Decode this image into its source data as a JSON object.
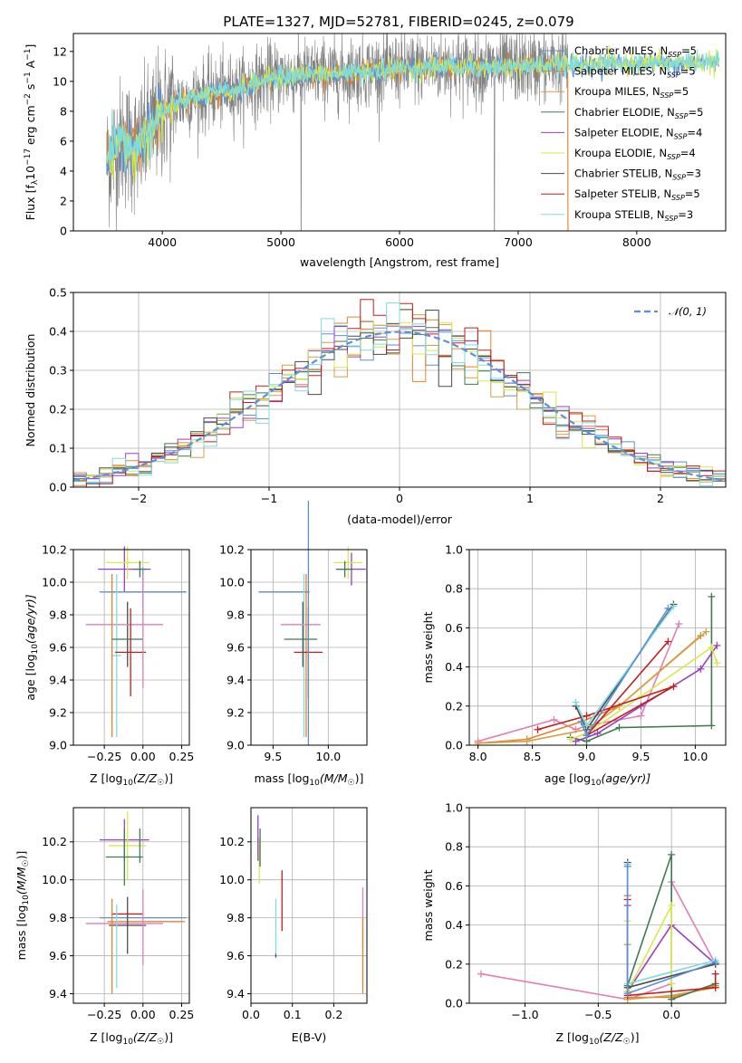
{
  "colors": {
    "chabrier_miles": "#5b8fd9",
    "salpeter_miles": "#e6832e",
    "kroupa_miles": "#d4a040",
    "chabrier_elodie": "#3f7a52",
    "salpeter_elodie": "#9a3ec4",
    "kroupa_elodie": "#d8e84a",
    "chabrier_stelib": "#4a4a4a",
    "salpeter_stelib": "#c41e1e",
    "kroupa_stelib": "#7fdcdc",
    "pink": "#e07fb8",
    "gaussian": "#5b8fd9"
  },
  "chart_data": [
    {
      "id": "spectrum",
      "type": "line",
      "title": "PLATE=1327, MJD=52781, FIBERID=0245, z=0.079",
      "xlabel": "wavelength [Angstrom, rest frame]",
      "ylabel_main": "Flux [f",
      "ylabel_rest": "10",
      "ylabel_exp": "−17",
      "ylabel_units": " erg cm",
      "ylabel_e2": "−2",
      "ylabel_s": " s",
      "ylabel_e1": "−1",
      "ylabel_a": " A",
      "ylabel_e3": "−1",
      "ylabel_end": "]",
      "xlim": [
        3250,
        8750
      ],
      "ylim": [
        0,
        13.2
      ],
      "xticks": [
        "4000",
        "5000",
        "6000",
        "7000",
        "8000"
      ],
      "xtick_values": [
        4000,
        5000,
        6000,
        7000,
        8000
      ],
      "yticks": [
        "0",
        "2",
        "4",
        "6",
        "8",
        "10",
        "12"
      ],
      "ytick_values": [
        0,
        2,
        4,
        6,
        8,
        10,
        12
      ],
      "legend": [
        {
          "label": "Chabrier MILES, N",
          "sub": "SSP",
          "tail": "=5",
          "key": "chabrier_miles"
        },
        {
          "label": "Salpeter MILES, N",
          "sub": "SSP",
          "tail": "=5",
          "key": "salpeter_miles"
        },
        {
          "label": "Kroupa MILES, N",
          "sub": "SSP",
          "tail": "=5",
          "key": "kroupa_miles"
        },
        {
          "label": "Chabrier ELODIE, N",
          "sub": "SSP",
          "tail": "=5",
          "key": "chabrier_elodie"
        },
        {
          "label": "Salpeter ELODIE, N",
          "sub": "SSP",
          "tail": "=4",
          "key": "salpeter_elodie"
        },
        {
          "label": "Kroupa ELODIE, N",
          "sub": "SSP",
          "tail": "=4",
          "key": "kroupa_elodie"
        },
        {
          "label": "Chabrier STELIB, N",
          "sub": "SSP",
          "tail": "=3",
          "key": "chabrier_stelib"
        },
        {
          "label": "Salpeter STELIB, N",
          "sub": "SSP",
          "tail": "=5",
          "key": "salpeter_stelib"
        },
        {
          "label": "Kroupa STELIB, N",
          "sub": "SSP",
          "tail": "=3",
          "key": "kroupa_stelib"
        }
      ],
      "continuum_x": [
        3530,
        3650,
        3800,
        3950,
        4100,
        4300,
        4500,
        4700,
        4900,
        5100,
        5300,
        5500,
        5700,
        5900,
        6100,
        6300,
        6500,
        6700,
        6900,
        7100,
        7300,
        7400,
        8700
      ],
      "continuum_y": [
        4.5,
        6.0,
        5.5,
        7.5,
        8.5,
        9.0,
        9.3,
        9.6,
        10.2,
        10.4,
        10.5,
        10.5,
        10.7,
        10.8,
        10.9,
        11.0,
        11.0,
        10.9,
        11.0,
        11.0,
        11.1,
        11.1,
        11.3
      ],
      "data_cut_x": 7420,
      "model_stop_x": 8700
    },
    {
      "id": "residuals",
      "type": "histogram",
      "xlabel": "(data-model)/error",
      "ylabel": "Normed distribution",
      "xlim": [
        -2.5,
        2.5
      ],
      "ylim": [
        0,
        0.5
      ],
      "xticks": [
        "−2",
        "−1",
        "0",
        "1",
        "2"
      ],
      "xtick_values": [
        -2,
        -1,
        0,
        1,
        2
      ],
      "yticks": [
        "0.0",
        "0.1",
        "0.2",
        "0.3",
        "0.4",
        "0.5"
      ],
      "ytick_values": [
        0,
        0.1,
        0.2,
        0.3,
        0.4,
        0.5
      ],
      "legend_label": "𝒩(0, 1)",
      "bin_width": 0.1
    },
    {
      "id": "age_vs_Z",
      "type": "errorbar",
      "xlabel": "Z [log",
      "xlabel_sub": "10",
      "xlabel_rest": "(Z/Z",
      "xlabel_sun": "☉",
      "xlabel_end": ")]",
      "ylabel": "age  [log",
      "ylabel_sub": "10",
      "ylabel_rest": "(age/yr)]",
      "xlim": [
        -0.45,
        0.3
      ],
      "ylim": [
        9.0,
        10.2
      ],
      "xticks": [
        "−0.25",
        "0.00",
        "0.25"
      ],
      "xtick_values": [
        -0.25,
        0,
        0.25
      ],
      "yticks": [
        "9.0",
        "9.2",
        "9.4",
        "9.6",
        "9.8",
        "10.0",
        "10.2"
      ],
      "ytick_values": [
        9.0,
        9.2,
        9.4,
        9.6,
        9.8,
        10.0,
        10.2
      ],
      "points": [
        {
          "key": "salpeter_elodie",
          "x": -0.12,
          "xerr": 0.17,
          "y": 10.08,
          "yerr": 0.14
        },
        {
          "key": "kroupa_elodie",
          "x": -0.1,
          "xerr": 0.14,
          "y": 10.12,
          "yerr": 0.1
        },
        {
          "key": "chabrier_elodie",
          "x": -0.02,
          "xerr": 0.04,
          "y": 10.08,
          "yerr": 0.05
        },
        {
          "key": "salpeter_miles",
          "x": 0.03,
          "xerr": 0.25,
          "y": 9.94,
          "yerr": 0.0
        },
        {
          "key": "chabrier_miles",
          "x": 0.0,
          "xerr": 0.28,
          "y": 9.94,
          "yerr": 0.15
        },
        {
          "key": "chabrier_stelib",
          "x": -0.1,
          "xerr": 0.0,
          "y": 9.68,
          "yerr": 0.2
        },
        {
          "key": "pink",
          "x": -0.12,
          "xerr": 0.25,
          "y": 9.74,
          "yerr": 0.0
        },
        {
          "key": "kroupa_stelib",
          "x": -0.17,
          "xerr": 0.03,
          "y": 9.55,
          "yerr": 0.5
        },
        {
          "key": "salpeter_miles",
          "x": -0.2,
          "xerr": 0.0,
          "y": 9.55,
          "yerr": 0.5
        },
        {
          "key": "chabrier_elodie",
          "x": -0.1,
          "xerr": 0.1,
          "y": 9.65,
          "yerr": 0.0
        },
        {
          "key": "salpeter_stelib",
          "x": -0.08,
          "xerr": 0.1,
          "y": 9.57,
          "yerr": 0.27
        },
        {
          "key": "pink",
          "x": 0.0,
          "xerr": 0.0,
          "y": 9.7,
          "yerr": 0.35
        }
      ]
    },
    {
      "id": "age_vs_mass",
      "type": "errorbar",
      "xlabel": "mass [log",
      "xlabel_sub": "10",
      "xlabel_rest": "(M/M",
      "xlabel_sun": "☉",
      "xlabel_end": ")]",
      "xlim": [
        9.3,
        10.35
      ],
      "ylim": [
        9.0,
        10.2
      ],
      "xticks": [
        "9.5",
        "10.0"
      ],
      "xtick_values": [
        9.5,
        10.0
      ],
      "yticks": [
        "9.0",
        "9.2",
        "9.4",
        "9.6",
        "9.8",
        "10.0",
        "10.2"
      ],
      "ytick_values": [
        9.0,
        9.2,
        9.4,
        9.6,
        9.8,
        10.0,
        10.2
      ],
      "points": [
        {
          "key": "salpeter_elodie",
          "x": 10.21,
          "xerr": 0.13,
          "y": 10.08,
          "yerr": 0.1
        },
        {
          "key": "kroupa_elodie",
          "x": 10.18,
          "xerr": 0.13,
          "y": 10.12,
          "yerr": 0.1
        },
        {
          "key": "chabrier_elodie",
          "x": 10.15,
          "xerr": 0.08,
          "y": 10.08,
          "yerr": 0.05
        },
        {
          "key": "salpeter_miles",
          "x": 9.6,
          "xerr": 0.23,
          "y": 9.94,
          "yerr": 0.0
        },
        {
          "key": "chabrier_miles",
          "x": 9.6,
          "xerr": 0.23,
          "y": 9.94,
          "yerr": 0.0
        },
        {
          "key": "chabrier_stelib",
          "x": 9.77,
          "xerr": 0.0,
          "y": 9.68,
          "yerr": 0.2
        },
        {
          "key": "pink",
          "x": 9.75,
          "xerr": 0.18,
          "y": 9.74,
          "yerr": 0.0
        },
        {
          "key": "kroupa_stelib",
          "x": 9.78,
          "xerr": 0.0,
          "y": 9.55,
          "yerr": 0.5
        },
        {
          "key": "salpeter_miles",
          "x": 9.8,
          "xerr": 0.0,
          "y": 9.55,
          "yerr": 0.5
        },
        {
          "key": "chabrier_elodie",
          "x": 9.75,
          "xerr": 0.15,
          "y": 9.65,
          "yerr": 0.0
        },
        {
          "key": "salpeter_stelib",
          "x": 9.82,
          "xerr": 0.13,
          "y": 9.57,
          "yerr": 0.28
        },
        {
          "key": "chabrier_miles",
          "x": 9.82,
          "xerr": 0.0,
          "y": 9.75,
          "yerr": 0.75
        }
      ]
    },
    {
      "id": "massweight_vs_age",
      "type": "line",
      "xlabel": "age  [log",
      "xlabel_sub": "10",
      "xlabel_rest": "(age/yr)]",
      "ylabel": "mass weight",
      "xlim": [
        7.92,
        10.28
      ],
      "ylim": [
        0,
        1.0
      ],
      "xticks": [
        "8.0",
        "8.5",
        "9.0",
        "9.5",
        "10.0"
      ],
      "xtick_values": [
        8.0,
        8.5,
        9.0,
        9.5,
        10.0
      ],
      "yticks": [
        "0.0",
        "0.2",
        "0.4",
        "0.6",
        "0.8",
        "1.0"
      ],
      "ytick_values": [
        0,
        0.2,
        0.4,
        0.6,
        0.8,
        1.0
      ],
      "series": [
        {
          "key": "pink",
          "x": [
            8.0,
            8.7,
            8.9,
            9.0,
            9.5,
            9.85
          ],
          "y": [
            0.02,
            0.13,
            0.08,
            0.1,
            0.15,
            0.62
          ]
        },
        {
          "key": "salpeter_miles",
          "x": [
            8.0,
            8.45,
            8.95,
            9.3,
            10.05
          ],
          "y": [
            0.01,
            0.03,
            0.12,
            0.2,
            0.56
          ]
        },
        {
          "key": "kroupa_miles",
          "x": [
            8.0,
            8.45,
            9.0,
            9.3,
            10.1
          ],
          "y": [
            0.01,
            0.02,
            0.08,
            0.2,
            0.58
          ]
        },
        {
          "key": "chabrier_elodie",
          "x": [
            8.85,
            9.0,
            9.3,
            10.15,
            10.15
          ],
          "y": [
            0.04,
            0.02,
            0.09,
            0.1,
            0.76
          ]
        },
        {
          "key": "salpeter_elodie",
          "x": [
            8.9,
            9.1,
            9.5,
            10.05,
            10.2
          ],
          "y": [
            0.02,
            0.06,
            0.2,
            0.39,
            0.51
          ]
        },
        {
          "key": "kroupa_elodie",
          "x": [
            8.85,
            9.0,
            9.5,
            10.15,
            10.2
          ],
          "y": [
            0.03,
            0.06,
            0.25,
            0.5,
            0.42
          ]
        },
        {
          "key": "chabrier_stelib",
          "x": [
            8.9,
            9.0,
            9.8
          ],
          "y": [
            0.2,
            0.08,
            0.72
          ]
        },
        {
          "key": "salpeter_stelib",
          "x": [
            8.55,
            9.0,
            9.8,
            9.0,
            9.75
          ],
          "y": [
            0.08,
            0.15,
            0.3,
            0.05,
            0.53
          ]
        },
        {
          "key": "kroupa_stelib",
          "x": [
            8.9,
            9.0,
            9.8
          ],
          "y": [
            0.22,
            0.1,
            0.71
          ]
        },
        {
          "key": "chabrier_miles",
          "x": [
            8.95,
            9.0,
            9.75
          ],
          "y": [
            0.12,
            0.05,
            0.7
          ]
        }
      ]
    },
    {
      "id": "mass_vs_Z",
      "type": "errorbar",
      "xlabel": "Z [log",
      "xlabel_sub": "10",
      "xlabel_rest": "(Z/Z",
      "xlabel_sun": "☉",
      "xlabel_end": ")]",
      "ylabel": "mass [log",
      "ylabel_sub": "10",
      "ylabel_rest": "(M/M",
      "ylabel_sun": "☉",
      "ylabel_end": ")]",
      "xlim": [
        -0.45,
        0.3
      ],
      "ylim": [
        9.35,
        10.38
      ],
      "xticks": [
        "−0.25",
        "0.00",
        "0.25"
      ],
      "xtick_values": [
        -0.25,
        0,
        0.25
      ],
      "yticks": [
        "9.4",
        "9.6",
        "9.8",
        "10.0",
        "10.2"
      ],
      "ytick_values": [
        9.4,
        9.6,
        9.8,
        10.0,
        10.2
      ],
      "points": [
        {
          "key": "salpeter_elodie",
          "x": -0.12,
          "xerr": 0.16,
          "y": 10.21,
          "yerr": 0.11
        },
        {
          "key": "kroupa_elodie",
          "x": -0.1,
          "xerr": 0.12,
          "y": 10.18,
          "yerr": 0.18
        },
        {
          "key": "chabrier_elodie",
          "x": -0.12,
          "xerr": 0.12,
          "y": 10.12,
          "yerr": 0.15
        },
        {
          "key": "chabrier_miles",
          "x": 0.0,
          "xerr": 0.28,
          "y": 9.8,
          "yerr": 0.0
        },
        {
          "key": "salpeter_miles",
          "x": 0.02,
          "xerr": 0.25,
          "y": 9.78,
          "yerr": 0.0
        },
        {
          "key": "pink",
          "x": -0.12,
          "xerr": 0.25,
          "y": 9.77,
          "yerr": 0.0
        },
        {
          "key": "chabrier_stelib",
          "x": -0.1,
          "xerr": 0.12,
          "y": 9.76,
          "yerr": 0.15
        },
        {
          "key": "salpeter_stelib",
          "x": -0.1,
          "xerr": 0.1,
          "y": 9.82,
          "yerr": 0.0
        },
        {
          "key": "kroupa_stelib",
          "x": -0.17,
          "xerr": 0.0,
          "y": 9.65,
          "yerr": 0.22
        },
        {
          "key": "salpeter_miles",
          "x": -0.2,
          "xerr": 0.0,
          "y": 9.65,
          "yerr": 0.25
        },
        {
          "key": "pink",
          "x": 0.0,
          "xerr": 0.0,
          "y": 9.75,
          "yerr": 0.2
        },
        {
          "key": "chabrier_elodie",
          "x": -0.02,
          "xerr": 0.0,
          "y": 10.18,
          "yerr": 0.09
        }
      ]
    },
    {
      "id": "mass_vs_ebv",
      "type": "errorbar",
      "xlabel": "E(B-V)",
      "xlim": [
        0.0,
        0.28
      ],
      "ylim": [
        9.35,
        10.38
      ],
      "xticks": [
        "0.0",
        "0.1",
        "0.2"
      ],
      "xtick_values": [
        0.0,
        0.1,
        0.2
      ],
      "yticks": [
        "9.4",
        "9.6",
        "9.8",
        "10.0",
        "10.2"
      ],
      "ytick_values": [
        9.4,
        9.6,
        9.8,
        10.0,
        10.2
      ],
      "points": [
        {
          "key": "salpeter_elodie",
          "x": 0.017,
          "xerr": 0.0,
          "y": 10.22,
          "yerr": 0.12
        },
        {
          "key": "kroupa_elodie",
          "x": 0.02,
          "xerr": 0.0,
          "y": 10.1,
          "yerr": 0.12
        },
        {
          "key": "chabrier_elodie",
          "x": 0.022,
          "xerr": 0.0,
          "y": 10.17,
          "yerr": 0.1
        },
        {
          "key": "kroupa_stelib",
          "x": 0.06,
          "xerr": 0.0,
          "y": 9.75,
          "yerr": 0.15
        },
        {
          "key": "chabrier_stelib",
          "x": 0.06,
          "xerr": 0.0,
          "y": 9.6,
          "yerr": 0.01
        },
        {
          "key": "salpeter_stelib",
          "x": 0.075,
          "xerr": 0.0,
          "y": 9.89,
          "yerr": 0.16
        },
        {
          "key": "pink",
          "x": 0.27,
          "xerr": 0.0,
          "y": 9.8,
          "yerr": 0.16
        },
        {
          "key": "salpeter_miles",
          "x": 0.27,
          "xerr": 0.0,
          "y": 9.6,
          "yerr": 0.2
        }
      ]
    },
    {
      "id": "massweight_vs_Z",
      "type": "line",
      "xlabel": "Z [log",
      "xlabel_sub": "10",
      "xlabel_rest": "(Z/Z",
      "xlabel_sun": "☉",
      "xlabel_end": ")]",
      "ylabel": "mass weight",
      "xlim": [
        -1.38,
        0.37
      ],
      "ylim": [
        0,
        1.0
      ],
      "xticks": [
        "−1.0",
        "−0.5",
        "0.0"
      ],
      "xtick_values": [
        -1.0,
        -0.5,
        0.0
      ],
      "yticks": [
        "0.0",
        "0.2",
        "0.4",
        "0.6",
        "0.8",
        "1.0"
      ],
      "ytick_values": [
        0,
        0.2,
        0.4,
        0.6,
        0.8,
        1.0
      ],
      "series": [
        {
          "key": "pink",
          "x": [
            -1.3,
            -0.3,
            0.0,
            0.0,
            0.3
          ],
          "y": [
            0.15,
            0.02,
            0.1,
            0.62,
            0.2
          ]
        },
        {
          "key": "salpeter_miles",
          "x": [
            -0.3,
            -0.3,
            0.0,
            0.3
          ],
          "y": [
            0.55,
            0.03,
            0.03,
            0.09
          ]
        },
        {
          "key": "kroupa_miles",
          "x": [
            -0.3,
            -0.3,
            0.0,
            0.3
          ],
          "y": [
            0.3,
            0.02,
            0.04,
            0.08
          ]
        },
        {
          "key": "chabrier_elodie",
          "x": [
            -0.3,
            0.0,
            0.0,
            0.3
          ],
          "y": [
            0.09,
            0.76,
            0.02,
            0.1
          ]
        },
        {
          "key": "salpeter_elodie",
          "x": [
            -0.3,
            -0.3,
            0.0,
            0.3
          ],
          "y": [
            0.5,
            0.06,
            0.4,
            0.2
          ]
        },
        {
          "key": "kroupa_elodie",
          "x": [
            -0.3,
            -0.3,
            0.0,
            0.0
          ],
          "y": [
            0.42,
            0.06,
            0.5,
            0.1
          ]
        },
        {
          "key": "chabrier_stelib",
          "x": [
            -0.3,
            -0.3,
            0.3
          ],
          "y": [
            0.72,
            0.08,
            0.2
          ]
        },
        {
          "key": "salpeter_stelib",
          "x": [
            -0.3,
            -0.3,
            0.3,
            0.3
          ],
          "y": [
            0.53,
            0.04,
            0.08,
            0.15
          ]
        },
        {
          "key": "kroupa_stelib",
          "x": [
            -0.3,
            -0.3,
            0.3
          ],
          "y": [
            0.71,
            0.1,
            0.22
          ]
        },
        {
          "key": "chabrier_miles",
          "x": [
            -0.3,
            -0.3,
            0.3
          ],
          "y": [
            0.7,
            0.05,
            0.21
          ]
        }
      ]
    }
  ]
}
